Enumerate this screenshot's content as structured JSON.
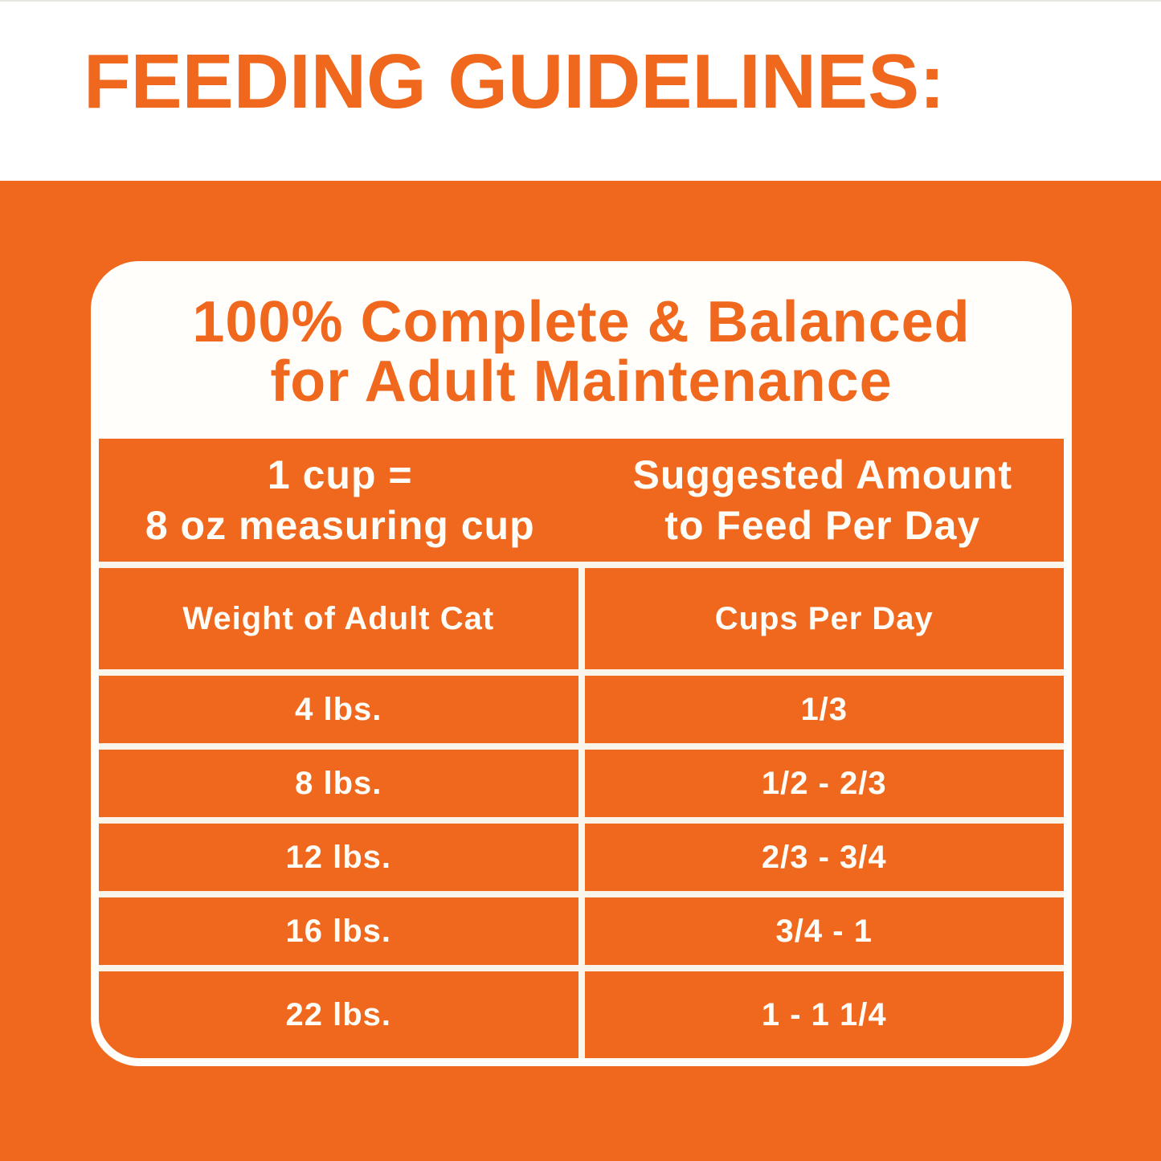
{
  "heading": "FEEDING GUIDELINES:",
  "card": {
    "title": {
      "line1": "100% Complete & Balanced",
      "line2": "for Adult Maintenance"
    },
    "cup_note": {
      "line1": "1 cup =",
      "line2": "8 oz measuring cup"
    },
    "amount_note": {
      "line1": "Suggested Amount",
      "line2": "to Feed Per Day"
    },
    "col_headers": {
      "weight": "Weight of Adult Cat",
      "cups": "Cups Per Day"
    },
    "rows": [
      {
        "weight": "4 lbs.",
        "cups": "1/3"
      },
      {
        "weight": "8 lbs.",
        "cups": "1/2 - 2/3"
      },
      {
        "weight": "12 lbs.",
        "cups": "2/3 - 3/4"
      },
      {
        "weight": "16 lbs.",
        "cups": "3/4 - 1"
      },
      {
        "weight": "22 lbs.",
        "cups": "1 - 1 1/4"
      }
    ]
  },
  "colors": {
    "accent_orange": "#F0681E",
    "text_on_orange": "#FFFDF8",
    "gridline_white": "#FAF5EB",
    "card_white": "#FFFEFB"
  },
  "chart_data": {
    "type": "table",
    "title": "100% Complete & Balanced for Adult Maintenance",
    "columns": [
      "Weight of Adult Cat",
      "Cups Per Day"
    ],
    "rows": [
      [
        "4 lbs.",
        "1/3"
      ],
      [
        "8 lbs.",
        "1/2 - 2/3"
      ],
      [
        "12 lbs.",
        "2/3 - 3/4"
      ],
      [
        "16 lbs.",
        "3/4 - 1"
      ],
      [
        "22 lbs.",
        "1 - 1 1/4"
      ]
    ]
  }
}
